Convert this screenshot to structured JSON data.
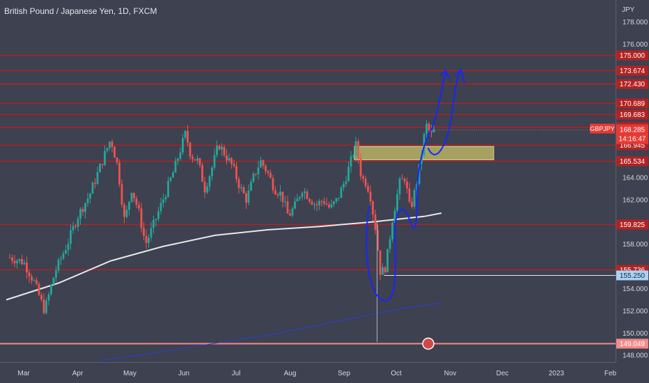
{
  "chart_data": {
    "type": "candlestick",
    "title": "British Pound / Japanese Yen, 1D, FXCM",
    "currency_label": "JPY",
    "ylim": [
      147.7,
      179.2
    ],
    "y_ticks": [
      "178.000",
      "176.000",
      "164.000",
      "162.000",
      "158.000",
      "154.000",
      "152.000",
      "150.000",
      "148.000"
    ],
    "x_ticks": [
      "Mar",
      "Apr",
      "May",
      "Jun",
      "Jul",
      "Aug",
      "Sep",
      "Oct",
      "Nov",
      "Dec",
      "2023",
      "Feb"
    ],
    "x_tick_days": [
      0,
      31,
      61,
      92,
      122,
      153,
      184,
      214,
      245,
      275,
      306,
      337
    ],
    "horizontal_levels": [
      {
        "value": 175.0,
        "label": "175.000"
      },
      {
        "value": 173.674,
        "label": "173.674"
      },
      {
        "value": 172.43,
        "label": "172.430"
      },
      {
        "value": 170.689,
        "label": "170.689"
      },
      {
        "value": 169.683,
        "label": "169.683"
      },
      {
        "value": 168.58,
        "label": "168.580"
      },
      {
        "value": 166.945,
        "label": "166.945"
      },
      {
        "value": 165.534,
        "label": "165.534"
      },
      {
        "value": 159.825,
        "label": "159.825"
      },
      {
        "value": 155.736,
        "label": "155.736"
      }
    ],
    "support_level": {
      "value": 149.049,
      "label": "149.049"
    },
    "current_price": {
      "symbol": "GBPJPY",
      "value": 168.285,
      "label": "168.285",
      "countdown": "14:16:47"
    },
    "marked_price": {
      "value": 155.25,
      "label": "155.250"
    },
    "zone": {
      "low": 165.6,
      "high": 166.8,
      "from_day": 190,
      "to_day": 270
    },
    "price_path": [
      [
        -8,
        156.8
      ],
      [
        0,
        156.4
      ],
      [
        6,
        154.6
      ],
      [
        12,
        152.0
      ],
      [
        18,
        155.5
      ],
      [
        25,
        158.0
      ],
      [
        31,
        160.5
      ],
      [
        38,
        162.5
      ],
      [
        44,
        165.0
      ],
      [
        50,
        167.5
      ],
      [
        54,
        165.0
      ],
      [
        58,
        160.0
      ],
      [
        62,
        163.0
      ],
      [
        66,
        161.0
      ],
      [
        70,
        158.0
      ],
      [
        74,
        159.5
      ],
      [
        80,
        162.0
      ],
      [
        86,
        164.5
      ],
      [
        90,
        166.5
      ],
      [
        93,
        168.0
      ],
      [
        96,
        166.0
      ],
      [
        100,
        165.5
      ],
      [
        104,
        163.0
      ],
      [
        108,
        164.8
      ],
      [
        112,
        167.0
      ],
      [
        116,
        166.0
      ],
      [
        120,
        165.0
      ],
      [
        124,
        163.2
      ],
      [
        128,
        162.0
      ],
      [
        132,
        164.0
      ],
      [
        136,
        165.5
      ],
      [
        140,
        164.5
      ],
      [
        144,
        163.0
      ],
      [
        148,
        162.5
      ],
      [
        152,
        160.5
      ],
      [
        156,
        161.5
      ],
      [
        160,
        163.0
      ],
      [
        164,
        162.2
      ],
      [
        168,
        161.5
      ],
      [
        172,
        162.0
      ],
      [
        176,
        161.2
      ],
      [
        180,
        162.0
      ],
      [
        184,
        163.5
      ],
      [
        188,
        165.5
      ],
      [
        191,
        167.0
      ],
      [
        194,
        164.0
      ],
      [
        197,
        163.5
      ],
      [
        199,
        162.5
      ],
      [
        202,
        159.5
      ],
      [
        205,
        155.3
      ],
      [
        208,
        156.0
      ],
      [
        212,
        160.5
      ],
      [
        216,
        163.5
      ],
      [
        219,
        164.0
      ],
      [
        222,
        161.0
      ],
      [
        225,
        163.0
      ],
      [
        228,
        165.5
      ],
      [
        231,
        168.8
      ],
      [
        234,
        167.8
      ],
      [
        236,
        168.285
      ]
    ],
    "ma_long": {
      "color": "#e8e8e8",
      "points": [
        [
          -10,
          153.0
        ],
        [
          20,
          154.5
        ],
        [
          50,
          156.5
        ],
        [
          80,
          157.8
        ],
        [
          110,
          158.8
        ],
        [
          140,
          159.3
        ],
        [
          170,
          159.6
        ],
        [
          200,
          160.0
        ],
        [
          230,
          160.5
        ],
        [
          240,
          160.8
        ]
      ]
    },
    "ma_trend": {
      "color": "#2a3fd6",
      "points": [
        [
          44,
          147.5
        ],
        [
          140,
          149.8
        ],
        [
          220,
          152.3
        ],
        [
          240,
          152.7
        ]
      ]
    },
    "drawing_color": "#1627ff",
    "colors": {
      "up": "#26a69a",
      "down": "#ef5350",
      "level_line": "#b22222",
      "level_label_bg": "#b22222",
      "support": "#f48a8a",
      "marked": "#a7d3f5"
    }
  }
}
